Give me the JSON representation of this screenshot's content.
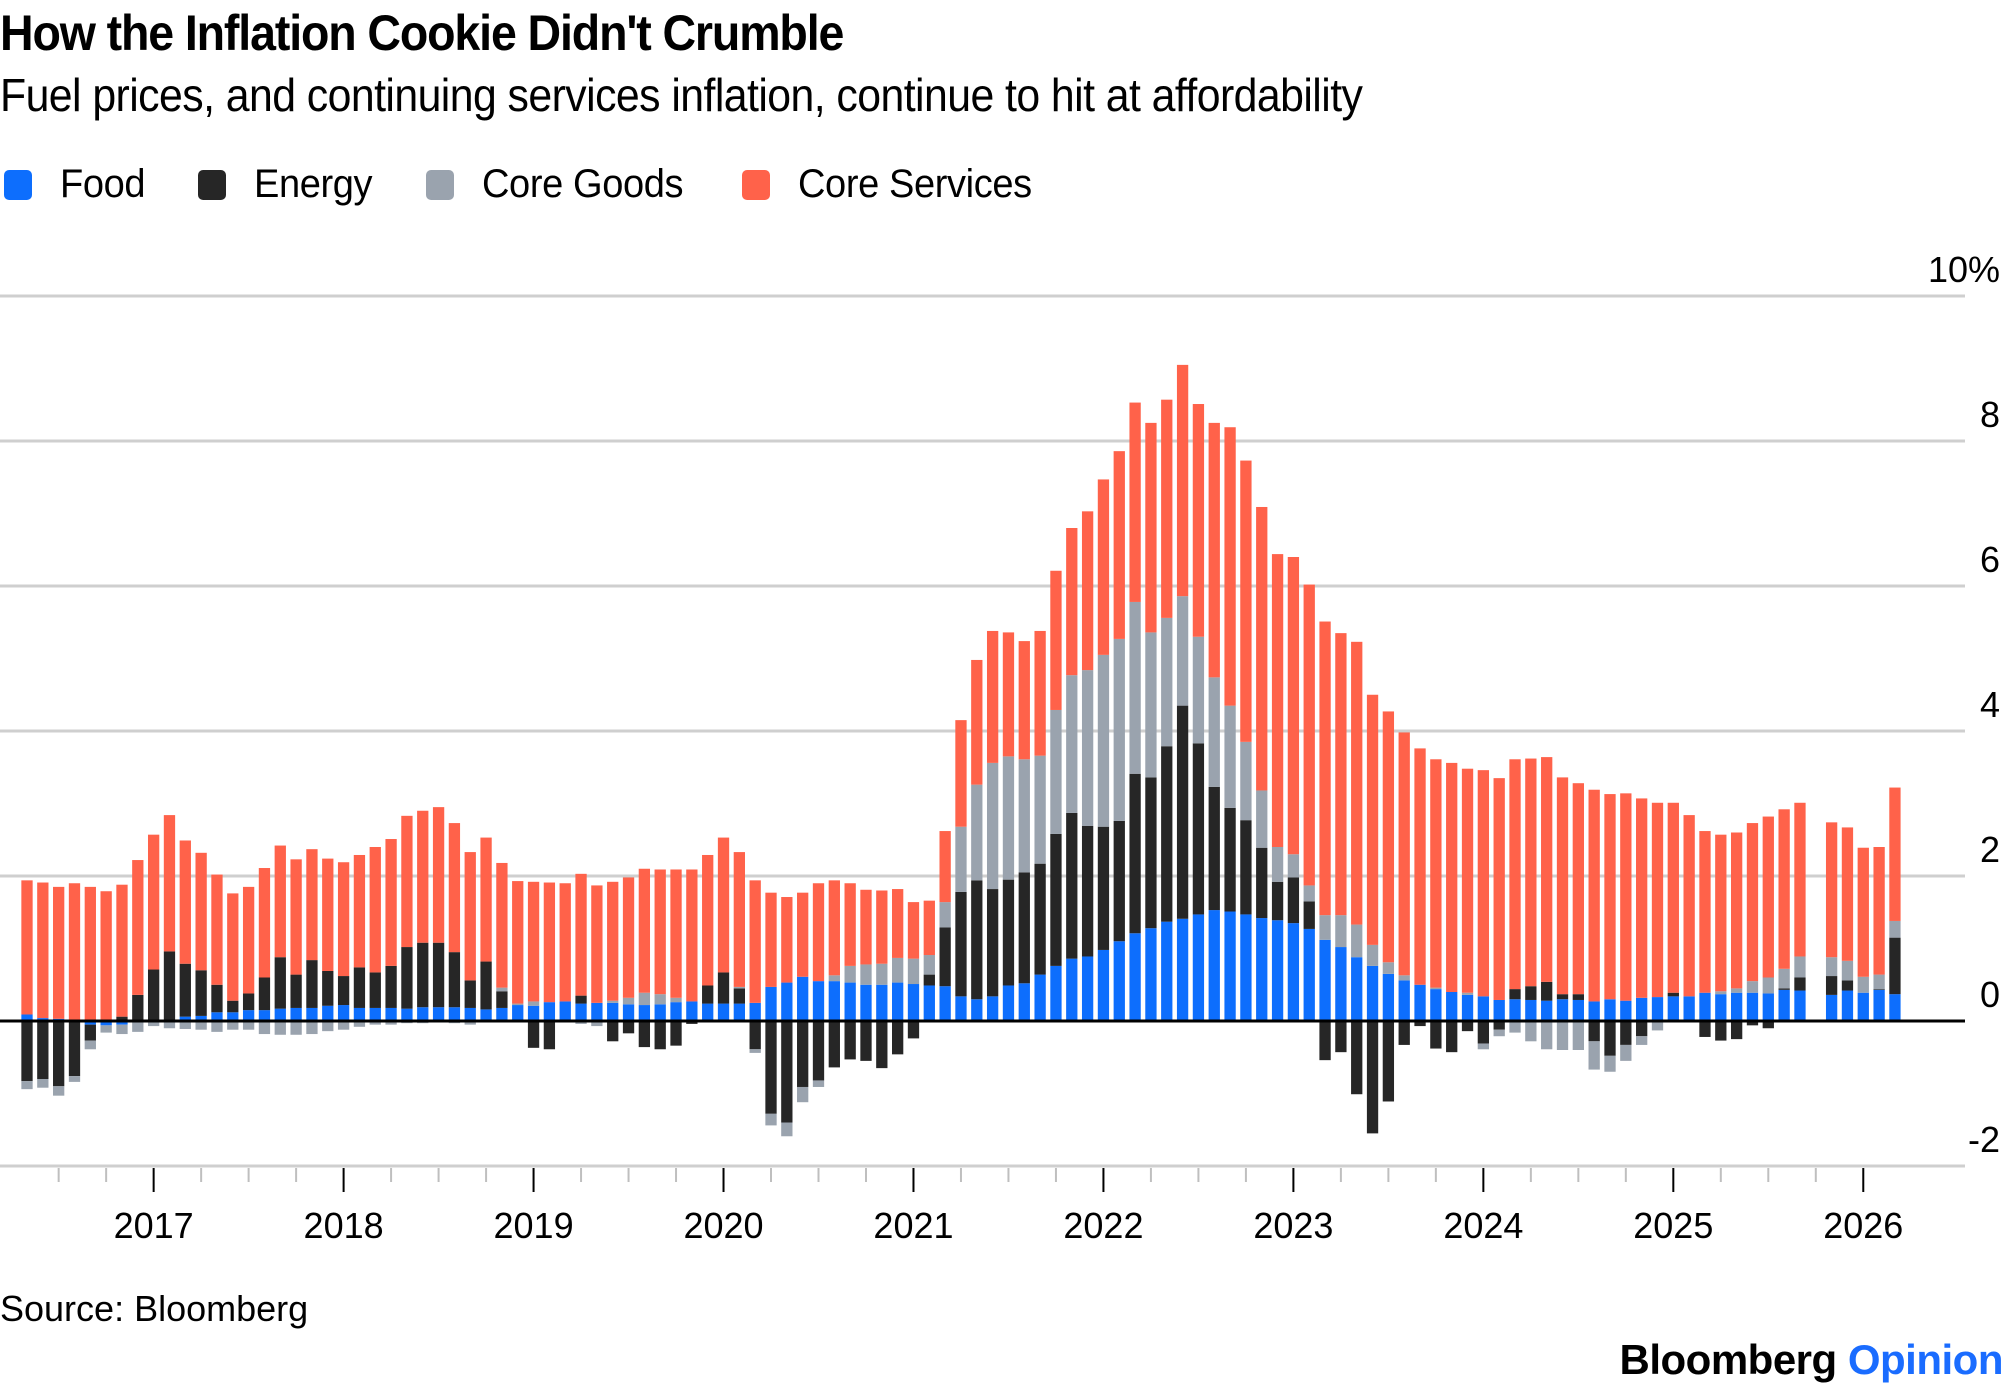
{
  "header": {
    "title": "How the Inflation Cookie Didn't Crumble",
    "subtitle": "Fuel prices, and continuing services inflation, continue to hit at affordability"
  },
  "legend": [
    {
      "label": "Food",
      "color": "#0d6efd"
    },
    {
      "label": "Energy",
      "color": "#262626"
    },
    {
      "label": "Core Goods",
      "color": "#9aa3ae"
    },
    {
      "label": "Core Services",
      "color": "#ff624a"
    }
  ],
  "footer": {
    "source": "Source: Bloomberg",
    "logo_brand": "Bloomberg",
    "logo_section": "Opinion"
  },
  "chart_data": {
    "type": "bar",
    "stacked": true,
    "title": "How the Inflation Cookie Didn't Crumble",
    "subtitle": "Fuel prices, and continuing services inflation, continue to hit at affordability",
    "xlabel": "",
    "ylabel": "",
    "ylim": [
      -2,
      10
    ],
    "yticks": [
      -2,
      0,
      2,
      4,
      6,
      8,
      10
    ],
    "ytick_labels": [
      "-2",
      "0",
      "2",
      "4",
      "6",
      "8",
      "10%"
    ],
    "yaxis_side": "right",
    "grid": true,
    "legend_position": "top-left",
    "x_start": "2016-05",
    "xtick_labels": [
      "2017",
      "2018",
      "2019",
      "2020",
      "2021",
      "2022",
      "2023",
      "2024",
      "2025",
      "2026"
    ],
    "xtick_month_index": [
      8,
      20,
      32,
      44,
      56,
      68,
      80,
      92,
      104,
      116
    ],
    "series_names": [
      "Food",
      "Energy",
      "Core Goods",
      "Core Services"
    ],
    "series_colors": [
      "#0d6efd",
      "#262626",
      "#9aa3ae",
      "#ff624a"
    ],
    "months": [
      [
        "2016-05",
        0.09,
        -0.83,
        -0.11,
        1.85
      ],
      [
        "2016-06",
        0.04,
        -0.8,
        -0.12,
        1.87
      ],
      [
        "2016-07",
        0.03,
        -0.9,
        -0.13,
        1.82
      ],
      [
        "2016-08",
        0.0,
        -0.76,
        -0.08,
        1.9
      ],
      [
        "2016-09",
        -0.05,
        -0.22,
        -0.12,
        1.85
      ],
      [
        "2016-10",
        -0.06,
        0.0,
        -0.1,
        1.79
      ],
      [
        "2016-11",
        -0.05,
        0.06,
        -0.13,
        1.82
      ],
      [
        "2016-12",
        0.02,
        0.34,
        -0.15,
        1.86
      ],
      [
        "2017-01",
        0.02,
        0.69,
        -0.07,
        1.86
      ],
      [
        "2017-02",
        0.02,
        0.94,
        -0.1,
        1.88
      ],
      [
        "2017-03",
        0.06,
        0.73,
        -0.11,
        1.7
      ],
      [
        "2017-04",
        0.07,
        0.63,
        -0.12,
        1.62
      ],
      [
        "2017-05",
        0.12,
        0.38,
        -0.15,
        1.52
      ],
      [
        "2017-06",
        0.12,
        0.16,
        -0.12,
        1.48
      ],
      [
        "2017-07",
        0.15,
        0.23,
        -0.12,
        1.47
      ],
      [
        "2017-08",
        0.15,
        0.45,
        -0.18,
        1.51
      ],
      [
        "2017-09",
        0.17,
        0.71,
        -0.19,
        1.54
      ],
      [
        "2017-10",
        0.18,
        0.46,
        -0.19,
        1.59
      ],
      [
        "2017-11",
        0.18,
        0.66,
        -0.18,
        1.53
      ],
      [
        "2017-12",
        0.21,
        0.48,
        -0.14,
        1.55
      ],
      [
        "2018-01",
        0.22,
        0.4,
        -0.12,
        1.57
      ],
      [
        "2018-02",
        0.18,
        0.56,
        -0.08,
        1.55
      ],
      [
        "2018-03",
        0.18,
        0.49,
        -0.05,
        1.73
      ],
      [
        "2018-04",
        0.18,
        0.58,
        -0.05,
        1.75
      ],
      [
        "2018-05",
        0.17,
        0.85,
        -0.03,
        1.81
      ],
      [
        "2018-06",
        0.19,
        0.89,
        -0.03,
        1.82
      ],
      [
        "2018-07",
        0.19,
        0.89,
        0.0,
        1.87
      ],
      [
        "2018-08",
        0.19,
        0.76,
        -0.03,
        1.78
      ],
      [
        "2018-09",
        0.18,
        0.38,
        -0.05,
        1.77
      ],
      [
        "2018-10",
        0.16,
        0.66,
        0.0,
        1.71
      ],
      [
        "2018-11",
        0.18,
        0.23,
        0.05,
        1.72
      ],
      [
        "2018-12",
        0.22,
        0.0,
        0.02,
        1.69
      ],
      [
        "2019-01",
        0.21,
        -0.37,
        0.06,
        1.65
      ],
      [
        "2019-02",
        0.26,
        -0.39,
        0.0,
        1.65
      ],
      [
        "2019-03",
        0.27,
        0.0,
        0.0,
        1.63
      ],
      [
        "2019-04",
        0.24,
        0.11,
        -0.04,
        1.68
      ],
      [
        "2019-05",
        0.25,
        0.0,
        -0.07,
        1.62
      ],
      [
        "2019-06",
        0.25,
        -0.28,
        0.03,
        1.64
      ],
      [
        "2019-07",
        0.23,
        -0.17,
        0.09,
        1.66
      ],
      [
        "2019-08",
        0.22,
        -0.36,
        0.17,
        1.71
      ],
      [
        "2019-09",
        0.23,
        -0.39,
        0.14,
        1.72
      ],
      [
        "2019-10",
        0.26,
        -0.34,
        0.06,
        1.77
      ],
      [
        "2019-11",
        0.27,
        -0.04,
        0.0,
        1.82
      ],
      [
        "2019-12",
        0.24,
        0.25,
        0.0,
        1.8
      ],
      [
        "2020-01",
        0.24,
        0.43,
        0.0,
        1.86
      ],
      [
        "2020-02",
        0.24,
        0.21,
        0.02,
        1.86
      ],
      [
        "2020-03",
        0.25,
        -0.39,
        -0.05,
        1.69
      ],
      [
        "2020-04",
        0.47,
        -1.28,
        -0.16,
        1.3
      ],
      [
        "2020-05",
        0.53,
        -1.4,
        -0.19,
        1.18
      ],
      [
        "2020-06",
        0.61,
        -0.91,
        -0.21,
        1.16
      ],
      [
        "2020-07",
        0.55,
        -0.82,
        -0.09,
        1.35
      ],
      [
        "2020-08",
        0.55,
        -0.64,
        0.08,
        1.31
      ],
      [
        "2020-09",
        0.53,
        -0.53,
        0.23,
        1.14
      ],
      [
        "2020-10",
        0.5,
        -0.55,
        0.28,
        1.03
      ],
      [
        "2020-11",
        0.5,
        -0.65,
        0.29,
        1.01
      ],
      [
        "2020-12",
        0.53,
        -0.46,
        0.34,
        0.95
      ],
      [
        "2021-01",
        0.51,
        -0.24,
        0.35,
        0.78
      ],
      [
        "2021-02",
        0.49,
        0.15,
        0.27,
        0.75
      ],
      [
        "2021-03",
        0.48,
        0.81,
        0.35,
        0.98
      ],
      [
        "2021-04",
        0.34,
        1.44,
        0.9,
        1.47
      ],
      [
        "2021-05",
        0.3,
        1.64,
        1.32,
        1.72
      ],
      [
        "2021-06",
        0.34,
        1.48,
        1.74,
        1.82
      ],
      [
        "2021-07",
        0.49,
        1.46,
        1.7,
        1.71
      ],
      [
        "2021-08",
        0.52,
        1.53,
        1.56,
        1.63
      ],
      [
        "2021-09",
        0.64,
        1.53,
        1.49,
        1.72
      ],
      [
        "2021-10",
        0.76,
        1.82,
        1.71,
        1.92
      ],
      [
        "2021-11",
        0.86,
        2.01,
        1.9,
        2.03
      ],
      [
        "2021-12",
        0.89,
        1.8,
        2.15,
        2.19
      ],
      [
        "2022-01",
        0.98,
        1.7,
        2.37,
        2.42
      ],
      [
        "2022-02",
        1.1,
        1.66,
        2.51,
        2.59
      ],
      [
        "2022-03",
        1.21,
        2.2,
        2.37,
        2.75
      ],
      [
        "2022-04",
        1.28,
        2.08,
        2.0,
        2.89
      ],
      [
        "2022-05",
        1.37,
        2.42,
        1.77,
        3.01
      ],
      [
        "2022-06",
        1.41,
        2.94,
        1.51,
        3.19
      ],
      [
        "2022-07",
        1.47,
        2.36,
        1.47,
        3.21
      ],
      [
        "2022-08",
        1.53,
        1.7,
        1.51,
        3.51
      ],
      [
        "2022-09",
        1.51,
        1.43,
        1.41,
        3.84
      ],
      [
        "2022-10",
        1.47,
        1.3,
        1.08,
        3.88
      ],
      [
        "2022-11",
        1.42,
        0.97,
        0.79,
        3.91
      ],
      [
        "2022-12",
        1.39,
        0.53,
        0.48,
        4.04
      ],
      [
        "2023-01",
        1.35,
        0.63,
        0.32,
        4.1
      ],
      [
        "2023-02",
        1.27,
        0.38,
        0.22,
        4.15
      ],
      [
        "2023-03",
        1.12,
        -0.54,
        0.34,
        4.05
      ],
      [
        "2023-04",
        1.02,
        -0.43,
        0.44,
        3.89
      ],
      [
        "2023-05",
        0.88,
        -1.01,
        0.45,
        3.9
      ],
      [
        "2023-06",
        0.76,
        -1.55,
        0.29,
        3.45
      ],
      [
        "2023-07",
        0.65,
        -1.11,
        0.16,
        3.46
      ],
      [
        "2023-08",
        0.56,
        -0.33,
        0.07,
        3.35
      ],
      [
        "2023-09",
        0.5,
        -0.07,
        0.0,
        3.26
      ],
      [
        "2023-10",
        0.44,
        -0.38,
        0.02,
        3.15
      ],
      [
        "2023-11",
        0.4,
        -0.43,
        0.0,
        3.16
      ],
      [
        "2023-12",
        0.36,
        -0.14,
        0.03,
        3.09
      ],
      [
        "2024-01",
        0.34,
        -0.31,
        -0.08,
        3.12
      ],
      [
        "2024-02",
        0.29,
        -0.12,
        -0.09,
        3.06
      ],
      [
        "2024-03",
        0.3,
        0.14,
        -0.16,
        3.17
      ],
      [
        "2024-04",
        0.29,
        0.19,
        -0.28,
        3.14
      ],
      [
        "2024-05",
        0.28,
        0.26,
        -0.39,
        3.1
      ],
      [
        "2024-06",
        0.3,
        0.07,
        -0.4,
        2.99
      ],
      [
        "2024-07",
        0.29,
        0.08,
        -0.4,
        2.91
      ],
      [
        "2024-08",
        0.27,
        -0.28,
        -0.39,
        2.92
      ],
      [
        "2024-09",
        0.3,
        -0.48,
        -0.22,
        2.83
      ],
      [
        "2024-10",
        0.28,
        -0.33,
        -0.22,
        2.86
      ],
      [
        "2024-11",
        0.32,
        -0.21,
        -0.12,
        2.75
      ],
      [
        "2024-12",
        0.33,
        0.0,
        -0.13,
        2.68
      ],
      [
        "2025-01",
        0.34,
        0.05,
        0.0,
        2.62
      ],
      [
        "2025-02",
        0.34,
        0.0,
        0.0,
        2.5
      ],
      [
        "2025-03",
        0.39,
        -0.22,
        0.0,
        2.23
      ],
      [
        "2025-04",
        0.37,
        -0.27,
        0.04,
        2.16
      ],
      [
        "2025-05",
        0.39,
        -0.25,
        0.06,
        2.15
      ],
      [
        "2025-06",
        0.39,
        -0.06,
        0.16,
        2.18
      ],
      [
        "2025-07",
        0.38,
        -0.1,
        0.22,
        2.22
      ],
      [
        "2025-08",
        0.43,
        0.02,
        0.27,
        2.2
      ],
      [
        "2025-09",
        0.42,
        0.18,
        0.29,
        2.12
      ],
      [
        "2025-10",
        null,
        null,
        null,
        null
      ],
      [
        "2025-11",
        0.36,
        0.26,
        0.26,
        1.86
      ],
      [
        "2025-12",
        0.42,
        0.14,
        0.27,
        1.84
      ],
      [
        "2026-01",
        0.39,
        0.0,
        0.22,
        1.78
      ],
      [
        "2026-02",
        0.43,
        0.01,
        0.2,
        1.76
      ],
      [
        "2026-03",
        0.37,
        0.78,
        0.23,
        1.84
      ]
    ]
  }
}
